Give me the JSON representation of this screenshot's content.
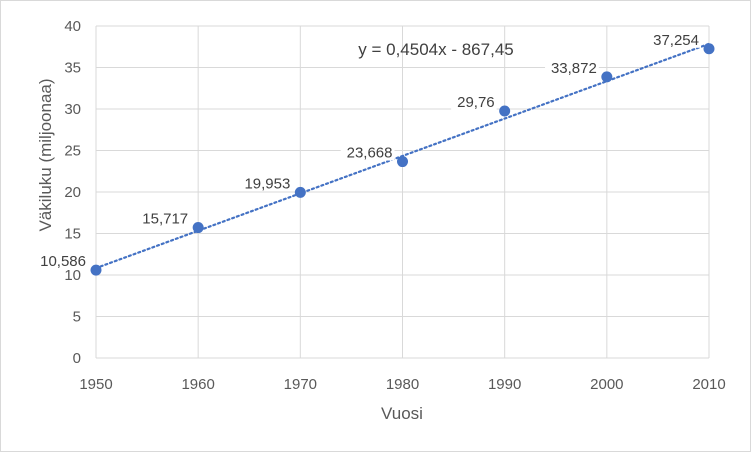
{
  "chart_data": {
    "type": "scatter",
    "title": "",
    "xlabel": "Vuosi",
    "ylabel": "Väkiluku (miljoonaa)",
    "xlim": [
      1950,
      2010
    ],
    "ylim": [
      0,
      40
    ],
    "xticks": [
      1950,
      1960,
      1970,
      1980,
      1990,
      2000,
      2010
    ],
    "yticks": [
      0,
      5,
      10,
      15,
      20,
      25,
      30,
      35,
      40
    ],
    "grid": true,
    "legend": "none",
    "series": [
      {
        "x": [
          1950,
          1960,
          1970,
          1980,
          1990,
          2000,
          2010
        ],
        "y": [
          10.586,
          15.717,
          19.953,
          23.668,
          29.76,
          33.872,
          37.254
        ],
        "labels": [
          "10,586",
          "15,717",
          "19,953",
          "23,668",
          "29,76",
          "33,872",
          "37,254"
        ],
        "color": "#4472c4"
      }
    ],
    "trendline": {
      "type": "linear",
      "slope": 0.4504,
      "intercept": -867.45,
      "equation": "y = 0,4504x - 867,45",
      "color": "#4472c4",
      "style": "dotted"
    }
  }
}
